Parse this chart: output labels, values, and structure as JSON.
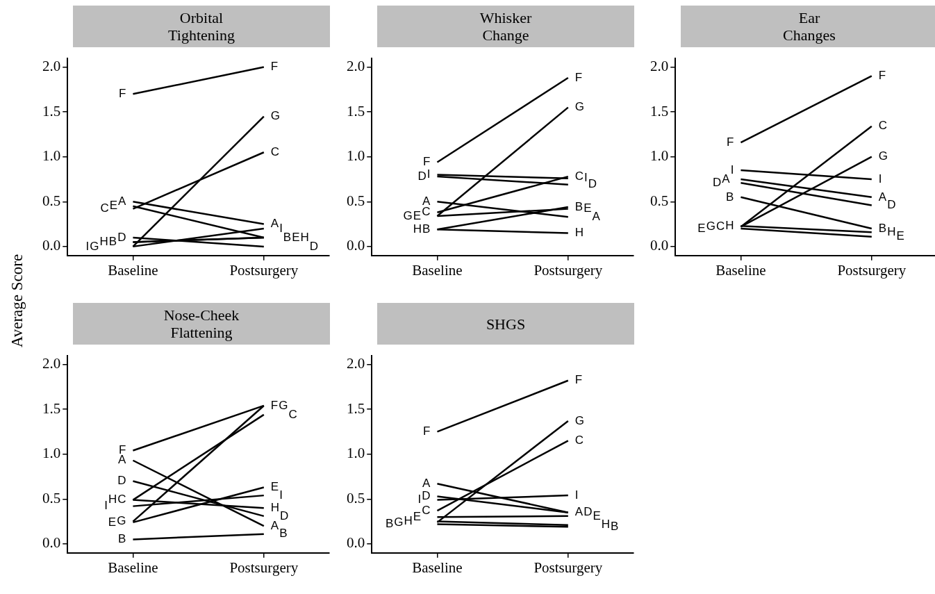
{
  "chart_data": [
    {
      "type": "line",
      "title": "Orbital Tightening",
      "ylabel": "Average Score",
      "categories": [
        "Baseline",
        "Postsurgery"
      ],
      "ylim": [
        -0.1,
        2.1
      ],
      "yticks": [
        {
          "value": 0,
          "label": "0.0"
        },
        {
          "value": 0.5,
          "label": "0.5"
        },
        {
          "value": 1,
          "label": "1.0"
        },
        {
          "value": 1.5,
          "label": "1.5"
        },
        {
          "value": 2,
          "label": "2.0"
        }
      ],
      "marker": "none",
      "series": [
        {
          "name": "A",
          "color": "#000000",
          "values": [
            0.5,
            0.25
          ]
        },
        {
          "name": "B",
          "color": "#000000",
          "values": [
            0.05,
            0.1
          ]
        },
        {
          "name": "C",
          "color": "#000000",
          "values": [
            0.42,
            1.05
          ]
        },
        {
          "name": "D",
          "color": "#000000",
          "values": [
            0.1,
            0
          ]
        },
        {
          "name": "E",
          "color": "#000000",
          "values": [
            0.45,
            0.1
          ]
        },
        {
          "name": "F",
          "color": "#000000",
          "values": [
            1.7,
            2.0
          ]
        },
        {
          "name": "G",
          "color": "#000000",
          "values": [
            0,
            1.45
          ]
        },
        {
          "name": "H",
          "color": "#000000",
          "values": [
            0.05,
            0.1
          ]
        },
        {
          "name": "I",
          "color": "#000000",
          "values": [
            0,
            0.2
          ]
        }
      ]
    },
    {
      "type": "line",
      "title": "Whisker Change",
      "categories": [
        "Baseline",
        "Postsurgery"
      ],
      "ylim": [
        -0.1,
        2.1
      ],
      "yticks": [
        {
          "value": 0,
          "label": "0.0"
        },
        {
          "value": 0.5,
          "label": "0.5"
        },
        {
          "value": 1,
          "label": "1.0"
        },
        {
          "value": 1.5,
          "label": "1.5"
        },
        {
          "value": 2,
          "label": "2.0"
        }
      ],
      "marker": "none",
      "series": [
        {
          "name": "A",
          "color": "#000000",
          "values": [
            0.5,
            0.33
          ]
        },
        {
          "name": "B",
          "color": "#000000",
          "values": [
            0.19,
            0.44
          ]
        },
        {
          "name": "C",
          "color": "#000000",
          "values": [
            0.38,
            0.78
          ]
        },
        {
          "name": "D",
          "color": "#000000",
          "values": [
            0.78,
            0.69
          ]
        },
        {
          "name": "E",
          "color": "#000000",
          "values": [
            0.34,
            0.42
          ]
        },
        {
          "name": "F",
          "color": "#000000",
          "values": [
            0.94,
            1.88
          ]
        },
        {
          "name": "G",
          "color": "#000000",
          "values": [
            0.34,
            1.55
          ]
        },
        {
          "name": "H",
          "color": "#000000",
          "values": [
            0.19,
            0.15
          ]
        },
        {
          "name": "I",
          "color": "#000000",
          "values": [
            0.8,
            0.76
          ]
        }
      ]
    },
    {
      "type": "line",
      "title": "Ear Changes",
      "categories": [
        "Baseline",
        "Postsurgery"
      ],
      "ylim": [
        -0.1,
        2.1
      ],
      "yticks": [
        {
          "value": 0,
          "label": "0.0"
        },
        {
          "value": 0.5,
          "label": "0.5"
        },
        {
          "value": 1,
          "label": "1.0"
        },
        {
          "value": 1.5,
          "label": "1.5"
        },
        {
          "value": 2,
          "label": "2.0"
        }
      ],
      "marker": "none",
      "series": [
        {
          "name": "A",
          "color": "#000000",
          "values": [
            0.75,
            0.55
          ]
        },
        {
          "name": "B",
          "color": "#000000",
          "values": [
            0.55,
            0.2
          ]
        },
        {
          "name": "C",
          "color": "#000000",
          "values": [
            0.22,
            1.34
          ]
        },
        {
          "name": "D",
          "color": "#000000",
          "values": [
            0.71,
            0.46
          ]
        },
        {
          "name": "E",
          "color": "#000000",
          "values": [
            0.2,
            0.11
          ]
        },
        {
          "name": "F",
          "color": "#000000",
          "values": [
            1.16,
            1.9
          ]
        },
        {
          "name": "G",
          "color": "#000000",
          "values": [
            0.22,
            1.0
          ]
        },
        {
          "name": "H",
          "color": "#000000",
          "values": [
            0.23,
            0.16
          ]
        },
        {
          "name": "I",
          "color": "#000000",
          "values": [
            0.85,
            0.75
          ]
        }
      ]
    },
    {
      "type": "line",
      "title": "Nose-Cheek Flattening",
      "categories": [
        "Baseline",
        "Postsurgery"
      ],
      "ylim": [
        -0.1,
        2.1
      ],
      "yticks": [
        {
          "value": 0,
          "label": "0.0"
        },
        {
          "value": 0.5,
          "label": "0.5"
        },
        {
          "value": 1,
          "label": "1.0"
        },
        {
          "value": 1.5,
          "label": "1.5"
        },
        {
          "value": 2,
          "label": "2.0"
        }
      ],
      "marker": "none",
      "series": [
        {
          "name": "A",
          "color": "#000000",
          "values": [
            0.93,
            0.2
          ]
        },
        {
          "name": "B",
          "color": "#000000",
          "values": [
            0.05,
            0.11
          ]
        },
        {
          "name": "C",
          "color": "#000000",
          "values": [
            0.49,
            1.44
          ]
        },
        {
          "name": "D",
          "color": "#000000",
          "values": [
            0.7,
            0.31
          ]
        },
        {
          "name": "E",
          "color": "#000000",
          "values": [
            0.24,
            0.63
          ]
        },
        {
          "name": "F",
          "color": "#000000",
          "values": [
            1.04,
            1.54
          ]
        },
        {
          "name": "G",
          "color": "#000000",
          "values": [
            0.25,
            1.54
          ]
        },
        {
          "name": "H",
          "color": "#000000",
          "values": [
            0.49,
            0.4
          ]
        },
        {
          "name": "I",
          "color": "#000000",
          "values": [
            0.42,
            0.54
          ]
        }
      ]
    },
    {
      "type": "line",
      "title": "SHGS",
      "categories": [
        "Baseline",
        "Postsurgery"
      ],
      "ylim": [
        -0.1,
        2.1
      ],
      "yticks": [
        {
          "value": 0,
          "label": "0.0"
        },
        {
          "value": 0.5,
          "label": "0.5"
        },
        {
          "value": 1,
          "label": "1.0"
        },
        {
          "value": 1.5,
          "label": "1.5"
        },
        {
          "value": 2,
          "label": "2.0"
        }
      ],
      "marker": "none",
      "series": [
        {
          "name": "A",
          "color": "#000000",
          "values": [
            0.67,
            0.35
          ]
        },
        {
          "name": "B",
          "color": "#000000",
          "values": [
            0.22,
            0.19
          ]
        },
        {
          "name": "C",
          "color": "#000000",
          "values": [
            0.37,
            1.15
          ]
        },
        {
          "name": "D",
          "color": "#000000",
          "values": [
            0.53,
            0.35
          ]
        },
        {
          "name": "E",
          "color": "#000000",
          "values": [
            0.3,
            0.31
          ]
        },
        {
          "name": "F",
          "color": "#000000",
          "values": [
            1.25,
            1.82
          ]
        },
        {
          "name": "G",
          "color": "#000000",
          "values": [
            0.24,
            1.37
          ]
        },
        {
          "name": "H",
          "color": "#000000",
          "values": [
            0.25,
            0.21
          ]
        },
        {
          "name": "I",
          "color": "#000000",
          "values": [
            0.49,
            0.54
          ]
        }
      ]
    }
  ]
}
